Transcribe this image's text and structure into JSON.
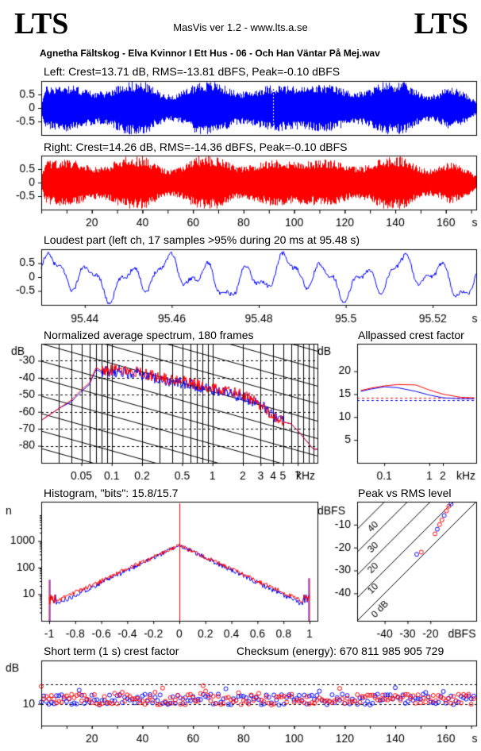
{
  "header": {
    "logo_left": "LTS",
    "logo_right": "LTS",
    "app": "MasVis ver 1.2 - www.lts.a.se",
    "track": "Agnetha Fältskog - Elva Kvinnor I Ett Hus - 06 - Och Han Väntar På Mej.wav"
  },
  "colors": {
    "left": "#0000ff",
    "right": "#ff0000",
    "grid": "#000000"
  },
  "chart_data": [
    {
      "id": "left_waveform",
      "type": "area",
      "title": "Left: Crest=13.71 dB, RMS=-13.81 dBFS, Peak=-0.10 dBFS",
      "ylim": [
        -1,
        1
      ],
      "yticks": [
        "0.5",
        "0",
        "-0.5"
      ],
      "series": [
        {
          "name": "Left",
          "color": "#0000ff"
        }
      ],
      "peak_marker_s": 95.48
    },
    {
      "id": "right_waveform",
      "type": "area",
      "title": "Right: Crest=14.26 dB, RMS=-14.36 dBFS, Peak=-0.10 dBFS",
      "ylim": [
        -1,
        1
      ],
      "yticks": [
        "0.5",
        "0",
        "-0.5"
      ],
      "xlim": [
        0,
        172
      ],
      "xticks": [
        "20",
        "40",
        "60",
        "80",
        "100",
        "120",
        "140",
        "160"
      ],
      "xunit": "s",
      "series": [
        {
          "name": "Right",
          "color": "#ff0000"
        }
      ]
    },
    {
      "id": "loudest_part",
      "type": "line",
      "title": "Loudest part (left  ch, 17 samples >95% during 20 ms at 95.48 s)",
      "xlim": [
        95.43,
        95.53
      ],
      "ylim": [
        -1,
        1
      ],
      "yticks": [
        "0.5",
        "0",
        "-0.5"
      ],
      "xticks": [
        "95.44",
        "95.46",
        "95.48",
        "95.5",
        "95.52"
      ],
      "xunit": "s"
    },
    {
      "id": "spectrum",
      "type": "line",
      "title": "Normalized average spectrum, 180 frames",
      "ylabel": "dB",
      "ylim": [
        -90,
        -20
      ],
      "yticks": [
        "-30",
        "-40",
        "-50",
        "-60",
        "-70",
        "-80"
      ],
      "xticks": [
        "0.05",
        "0.1",
        "0.2",
        "0.5",
        "1",
        "2",
        "3",
        "4",
        "5",
        "7"
      ],
      "xunit": "kHz",
      "x": [
        0.02,
        0.03,
        0.04,
        0.05,
        0.06,
        0.07,
        0.08,
        0.1,
        0.15,
        0.2,
        0.3,
        0.5,
        0.7,
        1,
        2,
        3,
        4,
        5,
        6,
        7,
        10
      ],
      "series": [
        {
          "name": "Left",
          "values": [
            -65,
            -58,
            -54,
            -48,
            -44,
            -35,
            -37,
            -36,
            -37,
            -38,
            -41,
            -43,
            -45,
            -47,
            -51,
            -56,
            -62,
            -66,
            -67,
            -71,
            -82
          ]
        },
        {
          "name": "Right",
          "values": [
            -65,
            -58,
            -53,
            -47,
            -43,
            -34,
            -36,
            -35,
            -36,
            -37,
            -40,
            -42,
            -44,
            -46,
            -50,
            -56,
            -62,
            -66,
            -67,
            -71,
            -82
          ]
        }
      ]
    },
    {
      "id": "allpass_crest",
      "type": "line",
      "title": "Allpassed crest factor",
      "ylabel": "dB",
      "ylim": [
        0,
        26
      ],
      "yticks": [
        "20",
        "15",
        "10",
        "5"
      ],
      "xticks": [
        "0.1",
        "1",
        "2"
      ],
      "xunit": "kHz",
      "x": [
        0.03,
        0.05,
        0.1,
        0.2,
        0.5,
        1,
        2,
        5,
        10
      ],
      "series": [
        {
          "name": "Left",
          "values": [
            15.6,
            16.1,
            16.6,
            16.4,
            15.6,
            14.8,
            14.2,
            14.0,
            14.0
          ]
        },
        {
          "name": "Right",
          "values": [
            15.8,
            16.3,
            16.8,
            17.1,
            17.0,
            15.9,
            15.0,
            14.3,
            14.2
          ]
        }
      ],
      "dashed_levels": [
        13.71,
        14.26
      ]
    },
    {
      "id": "histogram",
      "type": "line",
      "title": "Histogram, \"bits\": 15.8/15.7",
      "ylabel": "n",
      "ylog": true,
      "yticks": [
        "1000",
        "100",
        "10"
      ],
      "xticks": [
        "-1",
        "-0.8",
        "-0.6",
        "-0.4",
        "-0.2",
        "0",
        "0.2",
        "0.4",
        "0.6",
        "0.8",
        "1"
      ],
      "xlim": [
        -1,
        1
      ]
    },
    {
      "id": "peak_vs_rms",
      "type": "scatter",
      "title": "Peak vs RMS level",
      "ylabel": "dBFS",
      "xlabel": "dBFS",
      "yticks": [
        "-10",
        "-20",
        "-30",
        "-40"
      ],
      "xticks": [
        "-40",
        "-30",
        "-20"
      ],
      "diagonal_labels": [
        "40",
        "30",
        "20",
        "10",
        "0 dB"
      ],
      "points": [
        [
          -26,
          -23
        ],
        [
          -24,
          -22
        ],
        [
          -18,
          -14
        ],
        [
          -17,
          -12
        ],
        [
          -16,
          -10
        ],
        [
          -15,
          -8
        ],
        [
          -14,
          -6
        ],
        [
          -13,
          -4
        ],
        [
          -12,
          -2
        ],
        [
          -11,
          -1
        ]
      ]
    },
    {
      "id": "short_term_crest",
      "type": "scatter",
      "title": "Short term (1 s) crest factor",
      "checksum": "Checksum (energy):  670 811 985 905 729",
      "ylabel": "dB",
      "yticks": [
        "10"
      ],
      "xticks": [
        "20",
        "40",
        "60",
        "80",
        "100",
        "120",
        "140",
        "160"
      ],
      "xunit": "s",
      "xlim": [
        0,
        172
      ],
      "ylim": [
        0,
        30
      ]
    }
  ]
}
